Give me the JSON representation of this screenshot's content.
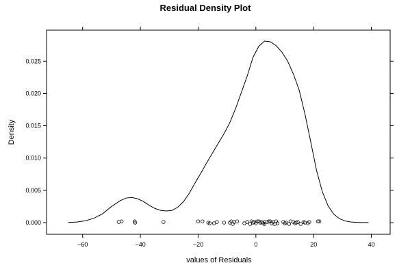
{
  "chart_data": {
    "type": "line",
    "title": "Residual Density Plot",
    "xlabel": "values of Residuals",
    "ylabel": "Density",
    "xlim": [
      -72.5,
      46.5
    ],
    "ylim": [
      -0.0018,
      0.0298
    ],
    "x_ticks": [
      -60,
      -40,
      -20,
      0,
      20,
      40
    ],
    "x_tick_labels": [
      "−60",
      "−40",
      "−20",
      "0",
      "20",
      "40"
    ],
    "y_ticks": [
      0.0,
      0.005,
      0.01,
      0.015,
      0.02,
      0.025
    ],
    "y_tick_labels": [
      "0.000",
      "0.005",
      "0.010",
      "0.015",
      "0.020",
      "0.025"
    ],
    "grid": false,
    "series": [
      {
        "kind": "density-line",
        "x": [
          -65,
          -62,
          -59,
          -56,
          -53,
          -50,
          -47,
          -45,
          -43,
          -41,
          -39,
          -37,
          -35,
          -33,
          -31,
          -29,
          -27,
          -25,
          -23,
          -21,
          -19,
          -17,
          -15,
          -13,
          -11,
          -9,
          -7,
          -5,
          -3,
          -1,
          1,
          3,
          5,
          7,
          9,
          11,
          13,
          15,
          17,
          19,
          21,
          23,
          25,
          27,
          29,
          31,
          33,
          35,
          37,
          39
        ],
        "y": [
          3e-05,
          0.0001,
          0.0003,
          0.0007,
          0.0014,
          0.0025,
          0.0034,
          0.0038,
          0.0039,
          0.0037,
          0.0033,
          0.0027,
          0.0022,
          0.0019,
          0.0018,
          0.0019,
          0.0024,
          0.0033,
          0.0046,
          0.0062,
          0.0077,
          0.0093,
          0.0108,
          0.0123,
          0.0138,
          0.0155,
          0.0177,
          0.0202,
          0.0227,
          0.0256,
          0.0273,
          0.0281,
          0.028,
          0.0274,
          0.0264,
          0.025,
          0.023,
          0.0205,
          0.0168,
          0.0125,
          0.0081,
          0.0048,
          0.0026,
          0.0013,
          0.0006,
          0.00025,
          0.0001,
          4e-05,
          2e-05,
          1e-05
        ]
      },
      {
        "kind": "rug-points",
        "x": [
          -47.5,
          -46.5,
          -42,
          -41.8,
          -32,
          -20,
          -18.5,
          -16.5,
          -16,
          -14.5,
          -13.5,
          -11,
          -9,
          -8.5,
          -8,
          -7.5,
          -6.5,
          -4,
          -3,
          -2,
          -1.5,
          -1,
          -0.5,
          0,
          0.5,
          1,
          1.5,
          2,
          2.5,
          3,
          3,
          4,
          4.5,
          5,
          5.5,
          6,
          6.5,
          7,
          7.5,
          9.5,
          10,
          10.5,
          11.5,
          12,
          13,
          13.5,
          14,
          14.5,
          15.5,
          16.5,
          17,
          18,
          18.5,
          21.5,
          22
        ],
        "y": [
          0.0001,
          0.0002,
          0.0002,
          0.0,
          0.0001,
          0.0002,
          0.0002,
          0.0,
          -0.0001,
          -0.0001,
          0.0001,
          0.0,
          0.0,
          0.0002,
          -0.0002,
          0.0001,
          0.0002,
          -0.0001,
          0.0001,
          -0.0002,
          0.0002,
          0.0,
          0.0001,
          -0.0001,
          0.0002,
          0.0002,
          0.0,
          0.0001,
          -0.0001,
          0.0001,
          -0.0002,
          0.0001,
          0.0002,
          0.0002,
          -0.0001,
          0.0001,
          -0.0002,
          0.0002,
          -0.0001,
          0.0001,
          -0.0001,
          0.0,
          -0.0002,
          0.0002,
          0.0001,
          -0.0001,
          0.0,
          0.0001,
          -0.0002,
          0.0001,
          0.0,
          -0.0001,
          0.0001,
          0.0002,
          0.0002
        ]
      }
    ]
  }
}
